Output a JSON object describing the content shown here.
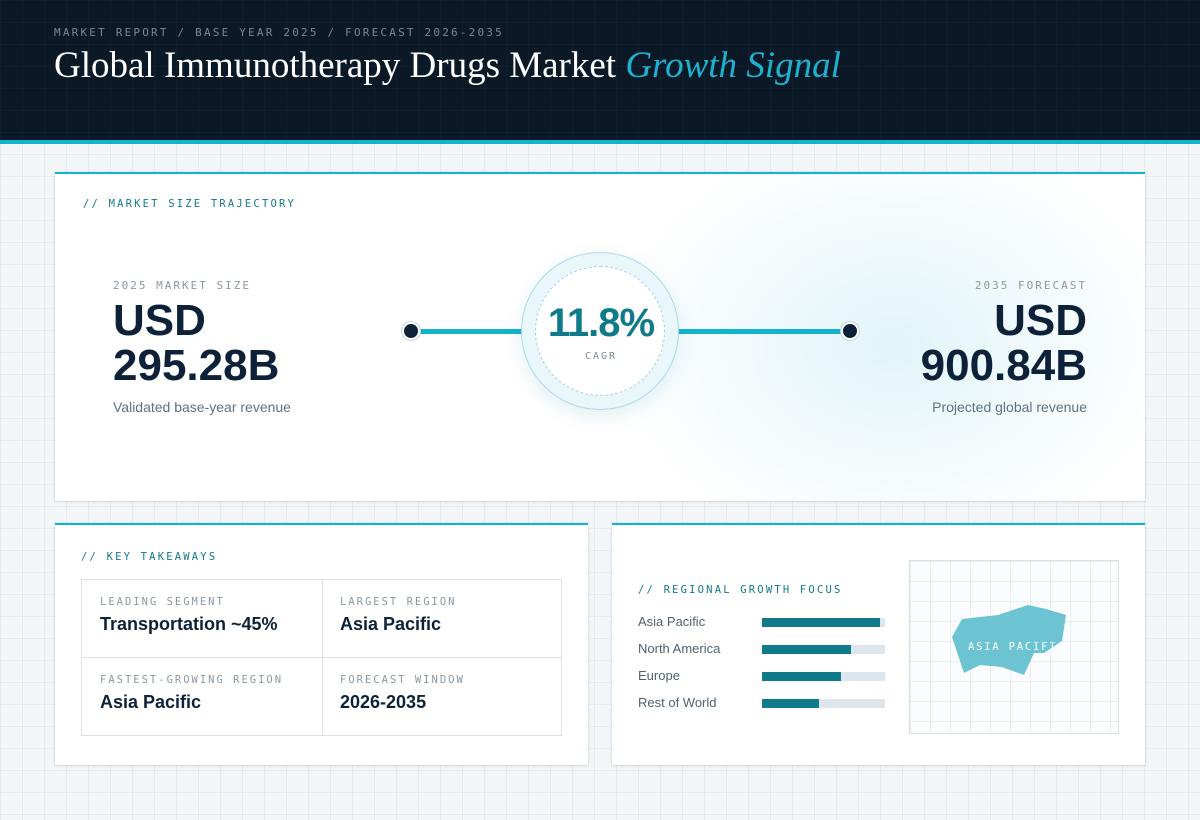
{
  "header": {
    "breadcrumb": "MARKET REPORT / BASE YEAR 2025 / FORECAST 2026-2035",
    "title_main": "Global Immunotherapy Drugs Market",
    "title_accent": "Growth Signal"
  },
  "trajectory": {
    "label": "// MARKET SIZE TRAJECTORY",
    "start": {
      "caption": "2025 MARKET SIZE",
      "currency": "USD",
      "value": "295.28B",
      "note": "Validated base-year revenue"
    },
    "cagr": {
      "value": "11.8%",
      "label": "CAGR"
    },
    "end": {
      "caption": "2035 FORECAST",
      "currency": "USD",
      "value": "900.84B",
      "note": "Projected global revenue"
    }
  },
  "takeaways": {
    "label": "// KEY TAKEAWAYS",
    "items": [
      {
        "caption": "LEADING SEGMENT",
        "value": "Transportation ~45%"
      },
      {
        "caption": "LARGEST REGION",
        "value": "Asia Pacific"
      },
      {
        "caption": "FASTEST-GROWING REGION",
        "value": "Asia Pacific"
      },
      {
        "caption": "FORECAST WINDOW",
        "value": "2026-2035"
      }
    ]
  },
  "regional": {
    "label": "// REGIONAL GROWTH FOCUS",
    "bars": [
      {
        "name": "Asia Pacific",
        "level": 0.96
      },
      {
        "name": "North America",
        "level": 0.72
      },
      {
        "name": "Europe",
        "level": 0.64
      },
      {
        "name": "Rest of World",
        "level": 0.46
      }
    ],
    "map_label": "ASIA PACIFIC",
    "map_color": "#6cc3d1"
  },
  "colors": {
    "accent": "#12b3cc",
    "header_bg": "#0b1927",
    "bar_fill": "#0f7a8a"
  }
}
